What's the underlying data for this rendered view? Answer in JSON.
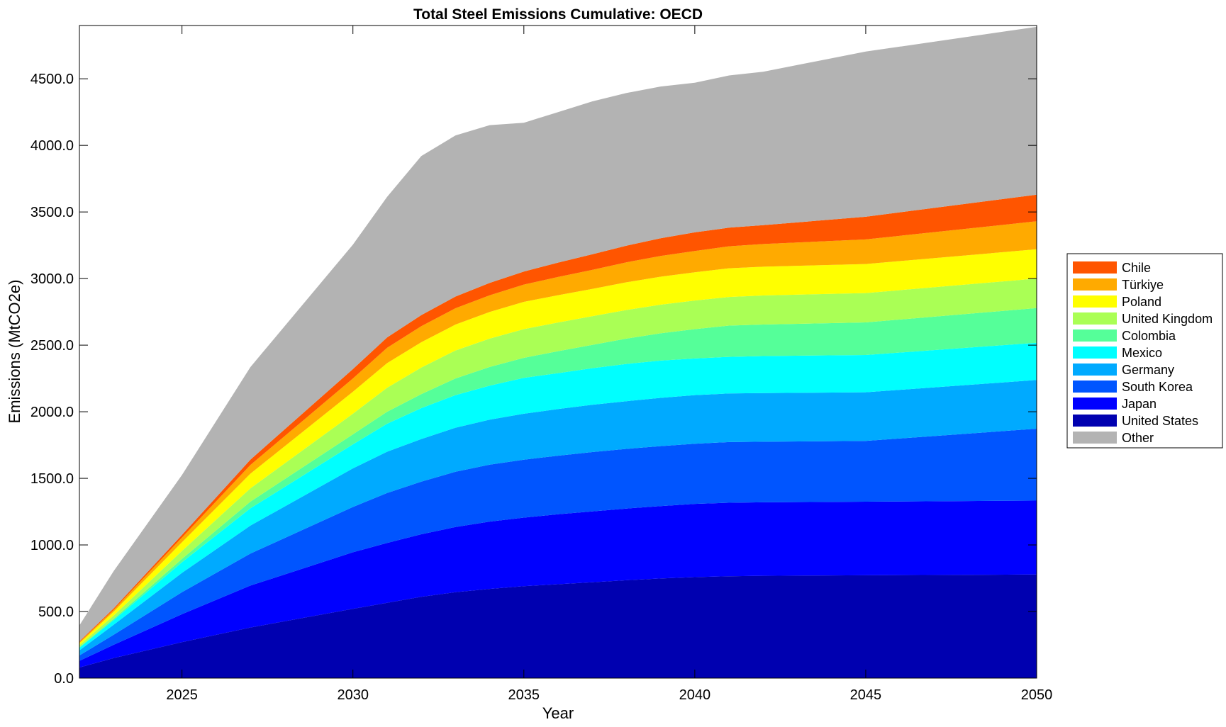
{
  "chart_data": {
    "type": "area",
    "stacked": true,
    "title": "Total Steel Emissions Cumulative: OECD",
    "xlabel": "Year",
    "ylabel": "Emissions (MtCO2e)",
    "xlim": [
      2022,
      2050
    ],
    "ylim": [
      0,
      4900
    ],
    "x_ticks": [
      2025,
      2030,
      2035,
      2040,
      2045,
      2050
    ],
    "y_ticks": [
      0,
      500,
      1000,
      1500,
      2000,
      2500,
      3000,
      3500,
      4000,
      4500
    ],
    "x_tick_labels": [
      "2025",
      "2030",
      "2035",
      "2040",
      "2045",
      "2050"
    ],
    "y_tick_labels": [
      "0.0",
      "500.0",
      "1000.0",
      "1500.0",
      "2000.0",
      "2500.0",
      "3000.0",
      "3500.0",
      "4000.0",
      "4500.0"
    ],
    "grid": false,
    "legend_position": "right",
    "x": [
      2022,
      2023,
      2025,
      2027,
      2030,
      2031,
      2032,
      2033,
      2034,
      2035,
      2036,
      2037,
      2038,
      2039,
      2040,
      2041,
      2042,
      2045,
      2050
    ],
    "series": [
      {
        "name": "United States",
        "color": "#0000b0",
        "values": [
          80,
          150,
          270,
          380,
          520,
          565,
          610,
          645,
          670,
          690,
          705,
          720,
          735,
          748,
          758,
          765,
          768,
          772,
          778
        ]
      },
      {
        "name": "Japan",
        "color": "#0000ff",
        "values": [
          50,
          100,
          210,
          315,
          425,
          450,
          470,
          490,
          505,
          515,
          525,
          532,
          538,
          544,
          550,
          552,
          552,
          553,
          555
        ]
      },
      {
        "name": "South Korea",
        "color": "#0055ff",
        "values": [
          40,
          75,
          165,
          240,
          340,
          375,
          395,
          415,
          428,
          435,
          440,
          445,
          448,
          450,
          452,
          455,
          455,
          456,
          540
        ]
      },
      {
        "name": "Germany",
        "color": "#00aaff",
        "values": [
          38,
          75,
          145,
          210,
          290,
          310,
          320,
          330,
          338,
          345,
          350,
          355,
          358,
          362,
          365,
          365,
          365,
          365,
          365
        ]
      },
      {
        "name": "Mexico",
        "color": "#00ffff",
        "values": [
          20,
          35,
          80,
          130,
          180,
          210,
          232,
          245,
          255,
          270,
          270,
          275,
          280,
          280,
          275,
          275,
          278,
          280,
          280
        ]
      },
      {
        "name": "Colombia",
        "color": "#55ff99",
        "values": [
          5,
          10,
          25,
          50,
          75,
          90,
          105,
          125,
          140,
          150,
          165,
          175,
          190,
          205,
          220,
          235,
          237,
          245,
          260
        ]
      },
      {
        "name": "United Kingdom",
        "color": "#aaff55",
        "values": [
          15,
          25,
          60,
          100,
          155,
          180,
          200,
          210,
          213,
          215,
          215,
          215,
          215,
          215,
          215,
          215,
          218,
          220,
          222
        ]
      },
      {
        "name": "Poland",
        "color": "#ffff00",
        "values": [
          15,
          28,
          65,
          110,
          165,
          185,
          190,
          195,
          200,
          205,
          205,
          205,
          208,
          210,
          212,
          215,
          216,
          218,
          220
        ]
      },
      {
        "name": "Türkiye",
        "color": "#ffaa00",
        "values": [
          8,
          15,
          35,
          65,
          100,
          115,
          120,
          122,
          125,
          130,
          137,
          143,
          150,
          156,
          160,
          165,
          170,
          185,
          210
        ]
      },
      {
        "name": "Chile",
        "color": "#ff5500",
        "values": [
          5,
          10,
          20,
          40,
          70,
          78,
          83,
          88,
          93,
          98,
          108,
          117,
          125,
          133,
          140,
          140,
          142,
          170,
          200
        ]
      },
      {
        "name": "Other",
        "color": "#b3b3b3",
        "values": [
          120,
          280,
          450,
          695,
          935,
          1055,
          1195,
          1210,
          1185,
          1117,
          1130,
          1148,
          1146,
          1139,
          1123,
          1143,
          1152,
          1240,
          1260
        ]
      }
    ],
    "legend_order": [
      "Chile",
      "Türkiye",
      "Poland",
      "United Kingdom",
      "Colombia",
      "Mexico",
      "Germany",
      "South Korea",
      "Japan",
      "United States",
      "Other"
    ]
  }
}
